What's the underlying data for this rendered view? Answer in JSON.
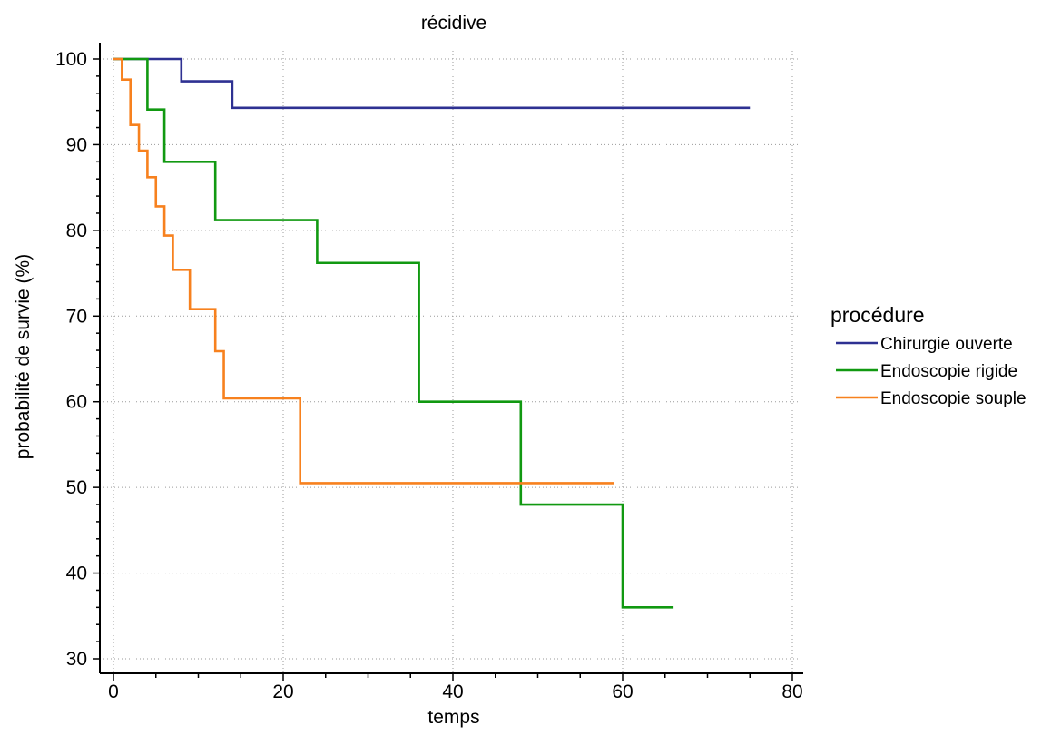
{
  "chart_data": {
    "type": "line",
    "step": true,
    "title": "récidive",
    "xlabel": "temps",
    "ylabel": "probabilité de survie (%)",
    "xlim": [
      0,
      80
    ],
    "ylim": [
      30,
      100
    ],
    "x_ticks": [
      0,
      20,
      40,
      60,
      80
    ],
    "y_ticks": [
      30,
      40,
      50,
      60,
      70,
      80,
      90,
      100
    ],
    "grid": true,
    "legend": {
      "title": "procédure",
      "placement": "right"
    },
    "series": [
      {
        "name": "Chirurgie ouverte",
        "color": "#2e3192",
        "x": [
          0,
          8,
          14,
          75
        ],
        "y": [
          100,
          97.4,
          94.3,
          94.3
        ]
      },
      {
        "name": "Endoscopie rigide",
        "color": "#119911",
        "x": [
          0,
          4,
          6,
          12,
          24,
          36,
          48,
          60,
          66
        ],
        "y": [
          100,
          94.1,
          88.0,
          81.2,
          76.2,
          60.0,
          48.0,
          36.0,
          36.0
        ]
      },
      {
        "name": "Endoscopie souple",
        "color": "#f7811e",
        "x": [
          0,
          1,
          2,
          3,
          4,
          5,
          6,
          7,
          9,
          12,
          13,
          22,
          59
        ],
        "y": [
          100,
          97.6,
          92.3,
          89.3,
          86.2,
          82.8,
          79.4,
          75.4,
          70.8,
          65.9,
          60.4,
          50.5,
          50.5
        ]
      }
    ]
  }
}
